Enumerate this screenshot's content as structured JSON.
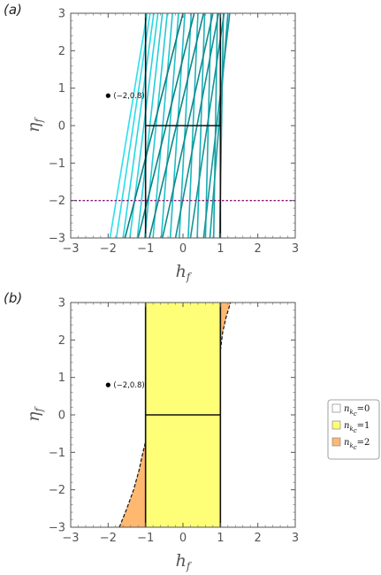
{
  "chart_data": [
    {
      "panel_label": "(a)",
      "type": "line",
      "xlabel": "h",
      "xlabel_sub": "f",
      "ylabel": "η",
      "ylabel_sub": "f",
      "xlim": [
        -3,
        3
      ],
      "ylim": [
        -3,
        3
      ],
      "xticks": [
        "−3",
        "−2",
        "−1",
        "0",
        "1",
        "2",
        "3"
      ],
      "yticks": [
        "−3",
        "−2",
        "−1",
        "0",
        "1",
        "2",
        "3"
      ],
      "grid": false,
      "point": {
        "x": -2,
        "y": 0.8,
        "label": "(−2,0.8)"
      },
      "vertical_lines": [
        -1,
        1
      ],
      "segment": {
        "x": [
          -1,
          1
        ],
        "y": 0
      },
      "dashed_line": {
        "y": -2,
        "color": "#8a1a7a"
      },
      "colors": {
        "cyan_start": "#2be0ee",
        "teal_end": "#0b7d7d"
      },
      "family_lines": [
        {
          "x": [
            -1.95,
            -0.96
          ],
          "y": [
            -3,
            3
          ]
        },
        {
          "x": [
            -1.78,
            -0.88
          ],
          "y": [
            -3,
            3
          ]
        },
        {
          "x": [
            -1.6,
            -0.78
          ],
          "y": [
            -3,
            3
          ]
        },
        {
          "x": [
            -1.42,
            -0.67
          ],
          "y": [
            -3,
            3
          ]
        },
        {
          "x": [
            -1.22,
            -0.55
          ],
          "y": [
            -3,
            3
          ]
        },
        {
          "x": [
            -1.02,
            -0.42
          ],
          "y": [
            -3,
            3
          ]
        },
        {
          "x": [
            -0.8,
            -0.28
          ],
          "y": [
            -3,
            3
          ]
        },
        {
          "x": [
            -0.58,
            -0.12
          ],
          "y": [
            -3,
            3
          ]
        },
        {
          "x": [
            -0.34,
            0.05
          ],
          "y": [
            -3,
            3
          ]
        },
        {
          "x": [
            -0.1,
            0.22
          ],
          "y": [
            -3,
            3
          ]
        },
        {
          "x": [
            0.14,
            0.4
          ],
          "y": [
            -3,
            3
          ]
        },
        {
          "x": [
            0.38,
            0.58
          ],
          "y": [
            -3,
            3
          ]
        },
        {
          "x": [
            0.6,
            0.75
          ],
          "y": [
            -3,
            3
          ]
        },
        {
          "x": [
            0.82,
            0.92
          ],
          "y": [
            -3,
            3
          ]
        },
        {
          "x": [
            0.98,
            1.08
          ],
          "y": [
            -3,
            3
          ]
        },
        {
          "x": [
            0.72,
            1.2
          ],
          "y": [
            -3,
            3
          ]
        },
        {
          "x": [
            0.55,
            1.25
          ],
          "y": [
            -3,
            3
          ]
        },
        {
          "x": [
            0.2,
            1.1
          ],
          "y": [
            -3,
            3
          ]
        },
        {
          "x": [
            -0.2,
            0.95
          ],
          "y": [
            -3,
            3
          ]
        },
        {
          "x": [
            -0.55,
            0.8
          ],
          "y": [
            -3,
            3
          ]
        },
        {
          "x": [
            -0.9,
            0.55
          ],
          "y": [
            -3,
            3
          ]
        },
        {
          "x": [
            -1.2,
            0.3
          ],
          "y": [
            -3,
            3
          ]
        },
        {
          "x": [
            -1.55,
            0.0
          ],
          "y": [
            -3,
            3
          ]
        }
      ]
    },
    {
      "panel_label": "(b)",
      "type": "area",
      "xlabel": "h",
      "xlabel_sub": "f",
      "ylabel": "η",
      "ylabel_sub": "f",
      "xlim": [
        -3,
        3
      ],
      "ylim": [
        -3,
        3
      ],
      "xticks": [
        "−3",
        "−2",
        "−1",
        "0",
        "1",
        "2",
        "3"
      ],
      "yticks": [
        "−3",
        "−2",
        "−1",
        "0",
        "1",
        "2",
        "3"
      ],
      "grid": false,
      "point": {
        "x": -2,
        "y": 0.8,
        "label": "(−2,0.8)"
      },
      "regions": [
        {
          "name": "n_kc=1",
          "color": "#ffff77",
          "x_range": [
            -1,
            1
          ],
          "y_range": [
            -3,
            3
          ]
        },
        {
          "name": "n_kc=2 (lower-left)",
          "color": "#ffb870",
          "boundary": [
            [
              -1.7,
              -3
            ],
            [
              -1.5,
              -2.5
            ],
            [
              -1.32,
              -2.0
            ],
            [
              -1.18,
              -1.5
            ],
            [
              -1.07,
              -1.0
            ],
            [
              -1.0,
              -0.72
            ]
          ]
        },
        {
          "name": "n_kc=2 (upper-right)",
          "color": "#ffb870",
          "boundary": [
            [
              1.0,
              1.72
            ],
            [
              1.06,
              2.2
            ],
            [
              1.15,
              2.6
            ],
            [
              1.27,
              3.0
            ]
          ]
        }
      ],
      "segment": {
        "x": [
          -1,
          1
        ],
        "y": 0
      },
      "legend": {
        "placement": "right",
        "entries": [
          {
            "label": "n",
            "sub": "k",
            "subsub": "c",
            "value": "=0",
            "color": "#ffffff"
          },
          {
            "label": "n",
            "sub": "k",
            "subsub": "c",
            "value": "=1",
            "color": "#ffff77"
          },
          {
            "label": "n",
            "sub": "k",
            "subsub": "c",
            "value": "=2",
            "color": "#ffb870"
          }
        ]
      }
    }
  ]
}
